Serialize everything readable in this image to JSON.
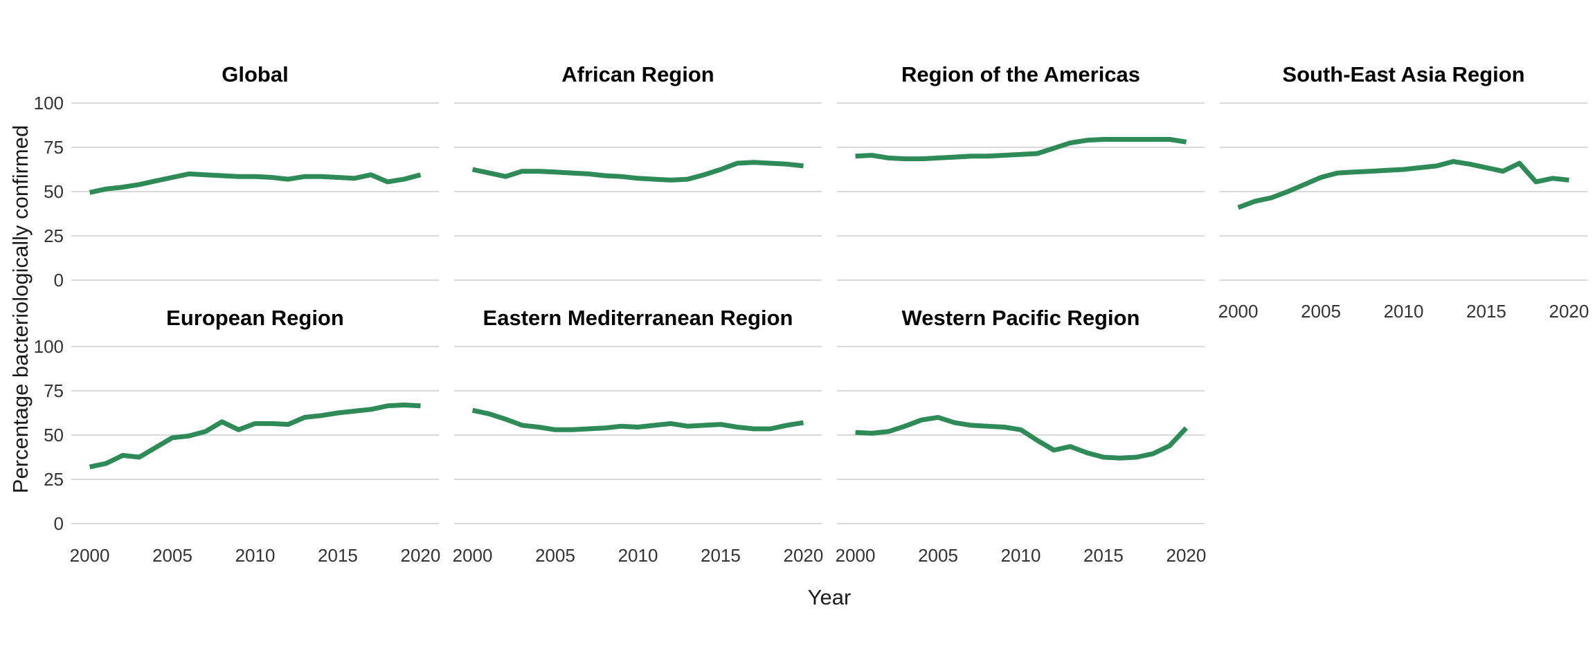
{
  "figure": {
    "xlabel": "Year",
    "ylabel": "Percentage bacteriologically confirmed"
  },
  "chart_data": {
    "type": "line",
    "x": [
      2000,
      2001,
      2002,
      2003,
      2004,
      2005,
      2006,
      2007,
      2008,
      2009,
      2010,
      2011,
      2012,
      2013,
      2014,
      2015,
      2016,
      2017,
      2018,
      2019,
      2020
    ],
    "xticks": [
      "2000",
      "2005",
      "2010",
      "2015",
      "2020"
    ],
    "yticks": [
      "0",
      "25",
      "50",
      "75",
      "100"
    ],
    "ylim": [
      0,
      100
    ],
    "xlim": [
      2000,
      2020
    ],
    "xlabel": "Year",
    "ylabel": "Percentage bacteriologically confirmed",
    "grid": "horizontal-only",
    "legend": "none",
    "line_color": "#2e8b57",
    "grid_color": "#d9d9d9",
    "tick_label_color": "#333333",
    "title_color": "#000000",
    "facets": [
      {
        "title": "Global",
        "values": [
          49.5,
          51.5,
          52.5,
          54,
          56,
          58,
          60,
          59.5,
          59,
          58.5,
          58.5,
          58,
          57,
          58.5,
          58.5,
          58,
          57.5,
          59.5,
          55.5,
          57,
          59.5
        ]
      },
      {
        "title": "African Region",
        "values": [
          62.5,
          60.5,
          58.5,
          61.5,
          61.5,
          61,
          60.5,
          60,
          59,
          58.5,
          57.5,
          57,
          56.5,
          57,
          59.5,
          62.5,
          66,
          66.5,
          66,
          65.5,
          64.5
        ]
      },
      {
        "title": "Region of the Americas",
        "values": [
          70,
          70.5,
          69,
          68.5,
          68.5,
          69,
          69.5,
          70,
          70,
          70.5,
          71,
          71.5,
          74.5,
          77.5,
          79,
          79.5,
          79.5,
          79.5,
          79.5,
          79.5,
          78
        ]
      },
      {
        "title": "South-East Asia Region",
        "values": [
          41,
          44.5,
          46.5,
          50,
          54,
          58,
          60.5,
          61,
          61.5,
          62,
          62.5,
          63.5,
          64.5,
          67,
          65.5,
          63.5,
          61.5,
          66,
          55.5,
          57.5,
          56.5
        ]
      },
      {
        "title": "European Region",
        "values": [
          32,
          34,
          38.5,
          37.5,
          43,
          48.5,
          49.5,
          52,
          57.5,
          53,
          56.5,
          56.5,
          56,
          60,
          61,
          62.5,
          63.5,
          64.5,
          66.5,
          67,
          66.5
        ]
      },
      {
        "title": "Eastern Mediterranean Region",
        "values": [
          64,
          62,
          59,
          55.5,
          54.5,
          53,
          53,
          53.5,
          54,
          55,
          54.5,
          55.5,
          56.5,
          55,
          55.5,
          56,
          54.5,
          53.5,
          53.5,
          55.5,
          57
        ]
      },
      {
        "title": "Western Pacific Region",
        "values": [
          51.5,
          51,
          52,
          55,
          58.5,
          60,
          57,
          55.5,
          55,
          54.5,
          53,
          47,
          41.5,
          43.5,
          40,
          37.5,
          37,
          37.5,
          39.5,
          44,
          54
        ]
      }
    ]
  }
}
